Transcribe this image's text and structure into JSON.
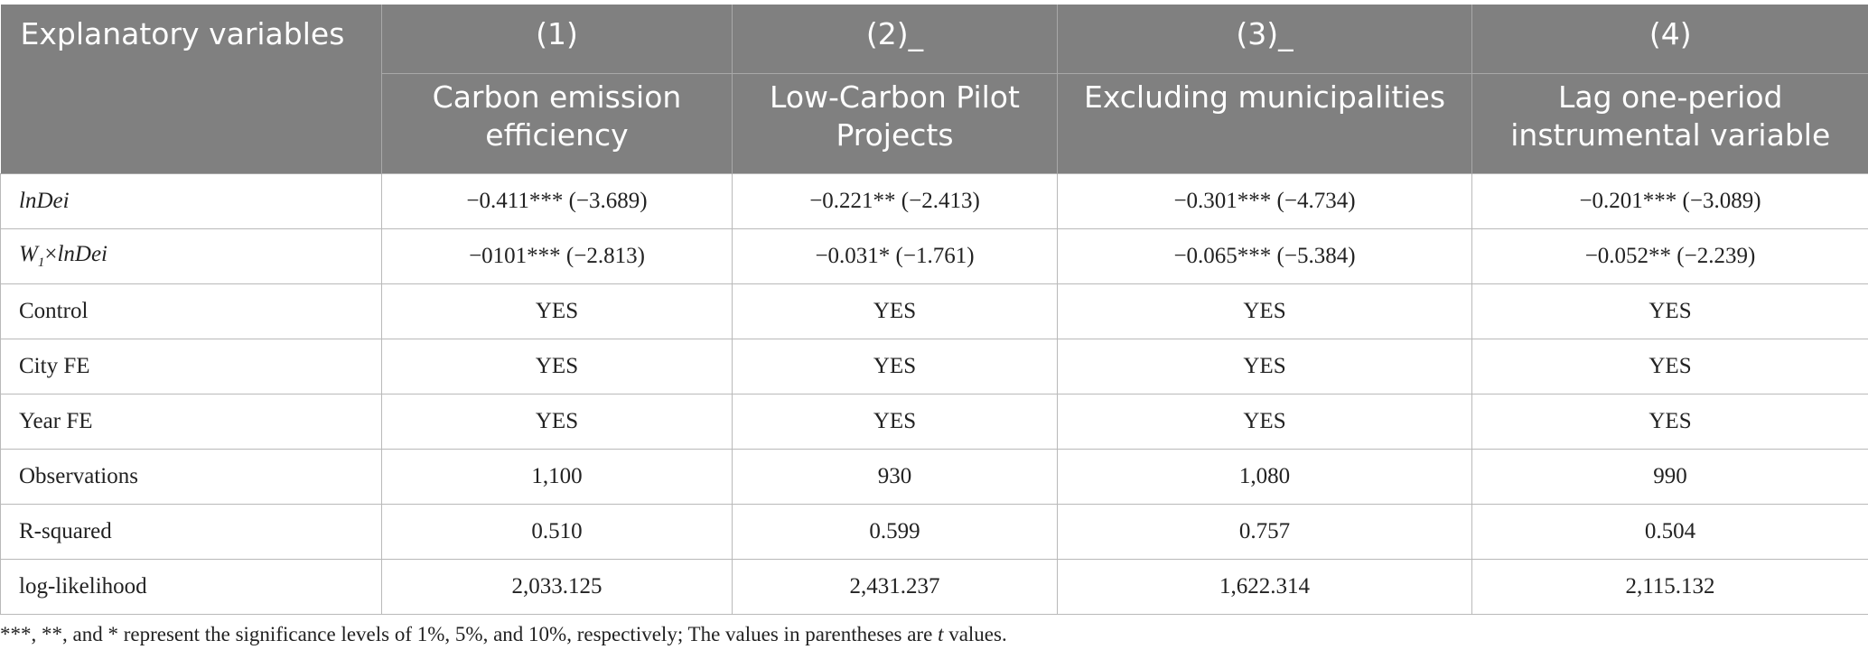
{
  "table": {
    "header": {
      "corner": "Explanatory variables",
      "columns": [
        {
          "number": "(1)",
          "title": "Carbon emission efficiency"
        },
        {
          "number": "(2)_",
          "title": "Low-Carbon Pilot Projects"
        },
        {
          "number": "(3)_",
          "title": "Excluding municipalities"
        },
        {
          "number": "(4)",
          "title": "Lag one-period instrumental variable"
        }
      ]
    },
    "rows": [
      {
        "label": "lnDei",
        "cells": [
          "−0.411*** (−3.689)",
          "−0.221** (−2.413)",
          "−0.301*** (−4.734)",
          "−0.201*** (−3.089)"
        ]
      },
      {
        "label_parts": [
          "W",
          "1",
          "×",
          "lnDei"
        ],
        "cells": [
          "−0101*** (−2.813)",
          "−0.031* (−1.761)",
          "−0.065*** (−5.384)",
          "−0.052** (−2.239)"
        ]
      },
      {
        "label": "Control",
        "cells": [
          "YES",
          "YES",
          "YES",
          "YES"
        ]
      },
      {
        "label": "City FE",
        "cells": [
          "YES",
          "YES",
          "YES",
          "YES"
        ]
      },
      {
        "label": "Year FE",
        "cells": [
          "YES",
          "YES",
          "YES",
          "YES"
        ]
      },
      {
        "label": "Observations",
        "cells": [
          "1,100",
          "930",
          "1,080",
          "990"
        ]
      },
      {
        "label": "R-squared",
        "cells": [
          "0.510",
          "0.599",
          "0.757",
          "0.504"
        ]
      },
      {
        "label": "log-likelihood",
        "cells": [
          "2,033.125",
          "2,431.237",
          "1,622.314",
          "2,115.132"
        ]
      }
    ],
    "note": [
      "***, **, and * represent the significance levels of 1%, 5%, and 10%, respectively; The values in parentheses are ",
      "t",
      " values."
    ]
  }
}
